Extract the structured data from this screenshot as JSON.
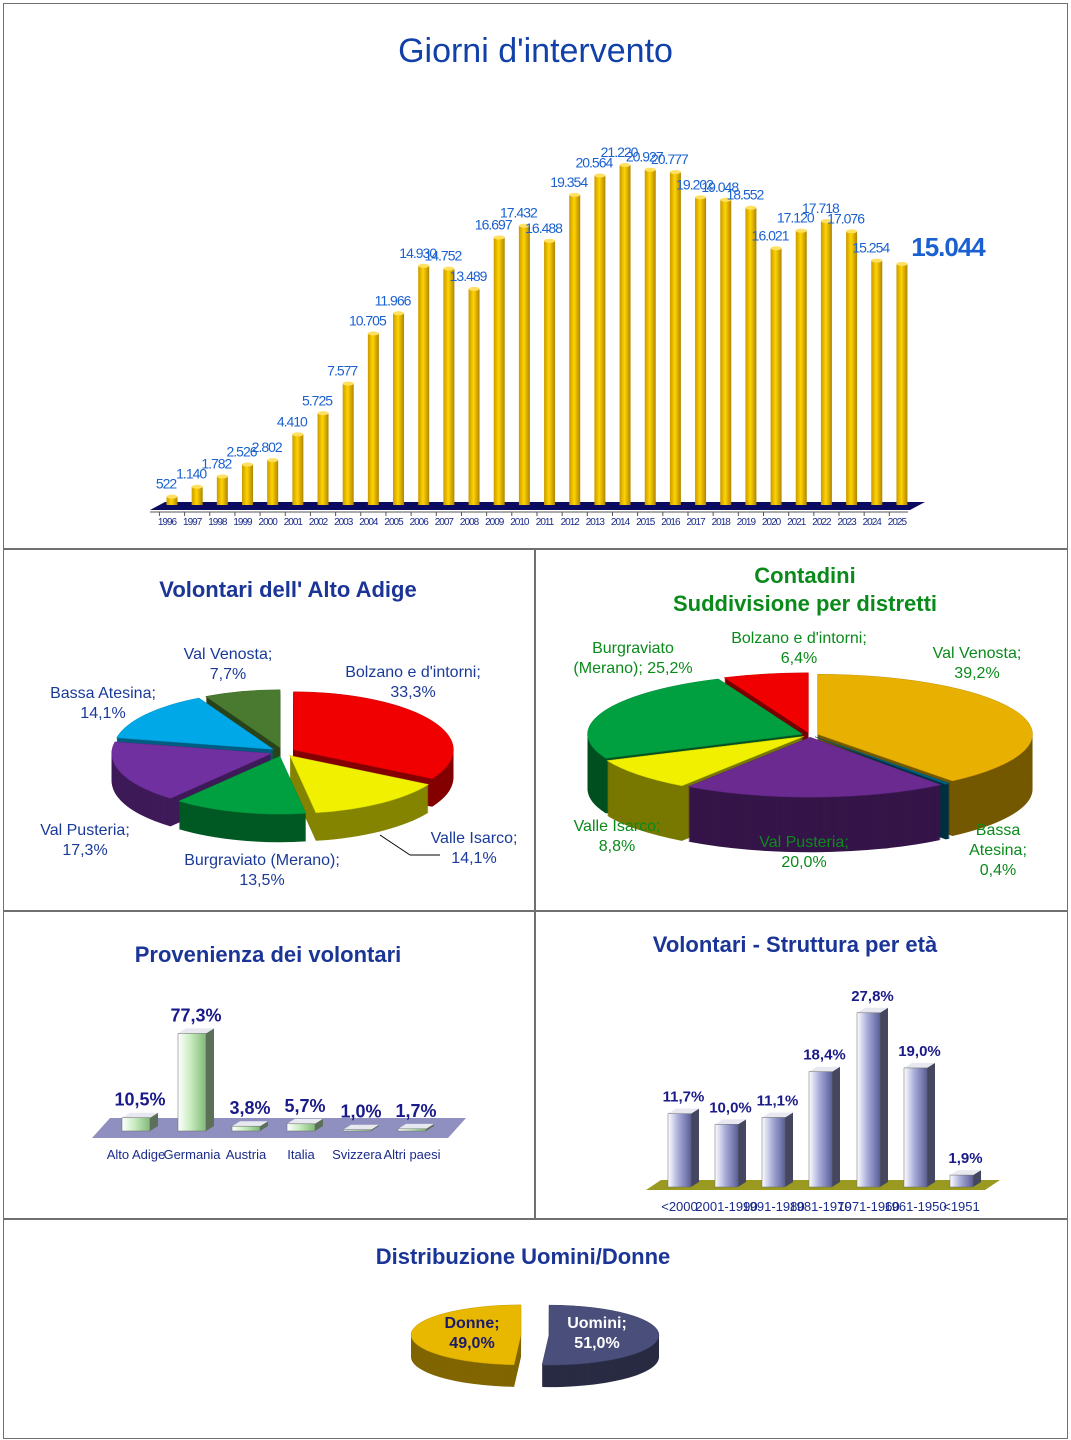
{
  "titles": {
    "main": "Giorni d'intervento",
    "alto_adige": "Volontari dell' Alto Adige",
    "contadini_1": "Contadini",
    "contadini_2": "Suddivisione per distretti",
    "provenienza": "Provenienza dei volontari",
    "eta": "Volontari - Struttura per età",
    "genere": "Distribuzione Uomini/Donne"
  },
  "chart_data": [
    {
      "type": "bar",
      "title": "Giorni d'intervento",
      "categories": [
        "1996",
        "1997",
        "1998",
        "1999",
        "2000",
        "2001",
        "2002",
        "2003",
        "2004",
        "2005",
        "2006",
        "2007",
        "2008",
        "2009",
        "2010",
        "2011",
        "2012",
        "2013",
        "2014",
        "2015",
        "2016",
        "2017",
        "2018",
        "2019",
        "2020",
        "2021",
        "2022",
        "2023",
        "2024",
        "2025"
      ],
      "values": [
        522,
        1140,
        1782,
        2526,
        2802,
        4410,
        5725,
        7577,
        10705,
        11966,
        14930,
        14752,
        13489,
        16697,
        17432,
        16488,
        19354,
        20564,
        21220,
        20927,
        20777,
        19202,
        19048,
        18552,
        16021,
        17120,
        17718,
        17076,
        15254,
        15044
      ],
      "labels": [
        "522",
        "1.140",
        "1.782",
        "2.526",
        "2.802",
        "4.410",
        "5.725",
        "7.577",
        "10.705",
        "11.966",
        "14.930",
        "14.752",
        "13.489",
        "16.697",
        "17.432",
        "16.488",
        "19.354",
        "20.564",
        "21.220",
        "20.927",
        "20.777",
        "19.202",
        "19.048",
        "18.552",
        "16.021",
        "17.120",
        "17.718",
        "17.076",
        "15.254",
        "15.044"
      ],
      "color": "#f5c400",
      "ylim": [
        0,
        22000
      ]
    },
    {
      "type": "pie",
      "title": "Volontari dell' Alto Adige",
      "slices": [
        {
          "name": "Bolzano e d'intorni",
          "value": 33.3,
          "label": "33,3%",
          "color": "#f00000"
        },
        {
          "name": "Valle Isarco",
          "value": 14.1,
          "label": "14,1%",
          "color": "#f0f000"
        },
        {
          "name": "Burgraviato (Merano)",
          "value": 13.5,
          "label": "13,5%",
          "color": "#00a040"
        },
        {
          "name": "Val Pusteria",
          "value": 17.3,
          "label": "17,3%",
          "color": "#7030a0"
        },
        {
          "name": "Bassa Atesina",
          "value": 14.1,
          "label": "14,1%",
          "color": "#00a8e8"
        },
        {
          "name": "Val Venosta",
          "value": 7.7,
          "label": "7,7%",
          "color": "#4a7a30"
        }
      ]
    },
    {
      "type": "pie",
      "title": "Contadini - Suddivisione per distretti",
      "slices": [
        {
          "name": "Val Venosta",
          "value": 39.2,
          "label": "39,2%",
          "color": "#e8b000"
        },
        {
          "name": "Bassa Atesina",
          "value": 0.4,
          "label": "0,4%",
          "color": "#006080"
        },
        {
          "name": "Val Pusteria",
          "value": 20.0,
          "label": "20,0%",
          "color": "#6a2a90"
        },
        {
          "name": "Valle Isarco",
          "value": 8.8,
          "label": "8,8%",
          "color": "#f0f000"
        },
        {
          "name": "Burgraviato (Merano)",
          "value": 25.2,
          "label": "25,2%",
          "color": "#00a040"
        },
        {
          "name": "Bolzano e d'intorni",
          "value": 6.4,
          "label": "6,4%",
          "color": "#f00000"
        }
      ]
    },
    {
      "type": "bar",
      "title": "Provenienza dei volontari",
      "categories": [
        "Alto Adige",
        "Germania",
        "Austria",
        "Italia",
        "Svizzera",
        "Altri paesi"
      ],
      "values": [
        10.5,
        77.3,
        3.8,
        5.7,
        1.0,
        1.7
      ],
      "labels": [
        "10,5%",
        "77,3%",
        "3,8%",
        "5,7%",
        "1,0%",
        "1,7%"
      ],
      "color": "#b8e0b0",
      "ylim": [
        0,
        80
      ]
    },
    {
      "type": "bar",
      "title": "Volontari - Struttura per età",
      "categories": [
        "<2000",
        "2001-1990",
        "1991-1980",
        "1981-1970",
        "1971-1960",
        "1961-1950",
        "<1951"
      ],
      "values": [
        11.7,
        10.0,
        11.1,
        18.4,
        27.8,
        19.0,
        1.9
      ],
      "labels": [
        "11,7%",
        "10,0%",
        "11,1%",
        "18,4%",
        "27,8%",
        "19,0%",
        "1,9%"
      ],
      "color": "#8a8ec0",
      "ylim": [
        0,
        30
      ]
    },
    {
      "type": "pie",
      "title": "Distribuzione Uomini/Donne",
      "slices": [
        {
          "name": "Uomini",
          "value": 51.0,
          "label": "51,0%",
          "color": "#4a4e7a"
        },
        {
          "name": "Donne",
          "value": 49.0,
          "label": "49,0%",
          "color": "#e8b800"
        }
      ]
    }
  ]
}
